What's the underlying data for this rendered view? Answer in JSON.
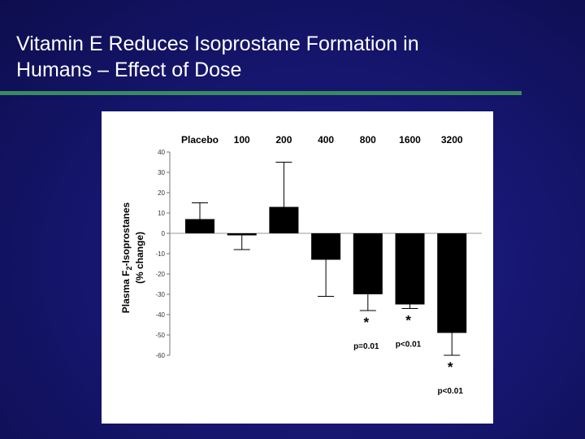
{
  "slide": {
    "title_line1": "Vitamin E Reduces Isoprostane Formation in",
    "title_line2": "Humans – Effect of Dose"
  },
  "colors": {
    "background": "#15156c",
    "title_text": "#ffffff",
    "accent_rule": "#3a8a5e",
    "bar_fill": "#000000",
    "panel": "#ffffff"
  },
  "chart_data": {
    "type": "bar",
    "title": "",
    "xlabel": "",
    "ylabel_line1": "Plasma F2-Isoprostanes",
    "ylabel_line2": "(% change)",
    "categories": [
      "Placebo",
      "100",
      "200",
      "400",
      "800",
      "1600",
      "3200"
    ],
    "values": [
      7,
      -1,
      13,
      -13,
      -30,
      -35,
      -49
    ],
    "error_upper": [
      15,
      null,
      35,
      null,
      null,
      null,
      null
    ],
    "error_lower": [
      null,
      -8,
      null,
      -31,
      -38,
      -37,
      -60
    ],
    "significance": [
      null,
      null,
      null,
      null,
      "*",
      "*",
      "*"
    ],
    "p_values": [
      null,
      null,
      null,
      null,
      "p=0.01",
      "p<0.01",
      "p<0.01"
    ],
    "ylim": [
      -60,
      40
    ],
    "yticks": [
      "40",
      "30",
      "20",
      "10",
      "0",
      "-10",
      "-20",
      "-30",
      "-40",
      "-50",
      "-60"
    ],
    "grid": false,
    "legend": "none"
  }
}
